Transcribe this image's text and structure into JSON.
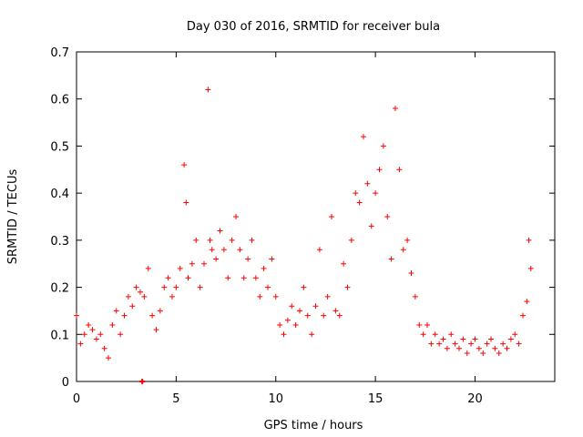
{
  "chart_data": {
    "type": "scatter",
    "title": "Day 030 of 2016, SRMTID for receiver bula",
    "xlabel": "GPS time / hours",
    "ylabel": "SRMTID / TECUs",
    "xlim": [
      0,
      24
    ],
    "ylim": [
      0,
      0.7
    ],
    "xticks": [
      0,
      5,
      10,
      15,
      20
    ],
    "yticks": [
      0,
      0.1,
      0.2,
      0.3,
      0.4,
      0.5,
      0.6,
      0.7
    ],
    "xtick_labels": [
      "0",
      "5",
      "10",
      "15",
      "20"
    ],
    "ytick_labels": [
      "0",
      "0.1",
      "0.2",
      "0.3",
      "0.4",
      "0.5",
      "0.6",
      "0.7"
    ],
    "grid": false,
    "marker": "+",
    "color": "#ff0000",
    "series": [
      {
        "name": "SRMTID",
        "x": [
          0.0,
          0.2,
          0.4,
          0.6,
          0.8,
          1.0,
          1.2,
          1.4,
          1.6,
          1.8,
          2.0,
          2.2,
          2.4,
          2.6,
          2.8,
          3.0,
          3.2,
          3.4,
          3.6,
          3.8,
          4.0,
          4.2,
          4.4,
          4.6,
          4.8,
          5.0,
          5.2,
          5.4,
          5.5,
          5.6,
          5.8,
          6.0,
          6.2,
          6.4,
          6.6,
          6.7,
          6.8,
          7.0,
          7.2,
          7.4,
          7.6,
          7.8,
          8.0,
          8.2,
          8.4,
          8.6,
          8.8,
          9.0,
          9.2,
          9.4,
          9.6,
          9.8,
          10.0,
          10.2,
          10.4,
          10.6,
          10.8,
          11.0,
          11.2,
          11.4,
          11.6,
          11.8,
          12.0,
          12.2,
          12.4,
          12.6,
          12.8,
          13.0,
          13.2,
          13.4,
          13.6,
          13.8,
          14.0,
          14.2,
          14.4,
          14.6,
          14.8,
          15.0,
          15.2,
          15.4,
          15.6,
          15.8,
          16.0,
          16.2,
          16.4,
          16.6,
          16.8,
          17.0,
          17.2,
          17.4,
          17.6,
          17.8,
          18.0,
          18.2,
          18.4,
          18.6,
          18.8,
          19.0,
          19.2,
          19.4,
          19.6,
          19.8,
          20.0,
          20.2,
          20.4,
          20.6,
          20.8,
          21.0,
          21.2,
          21.4,
          21.6,
          21.8,
          22.0,
          22.2,
          22.4,
          22.6,
          22.7,
          22.8
        ],
        "y": [
          0.14,
          0.08,
          0.1,
          0.12,
          0.11,
          0.09,
          0.1,
          0.07,
          0.05,
          0.12,
          0.15,
          0.1,
          0.14,
          0.18,
          0.16,
          0.2,
          0.19,
          0.18,
          0.24,
          0.14,
          0.11,
          0.15,
          0.2,
          0.22,
          0.18,
          0.2,
          0.24,
          0.46,
          0.38,
          0.22,
          0.25,
          0.3,
          0.2,
          0.25,
          0.62,
          0.3,
          0.28,
          0.26,
          0.32,
          0.28,
          0.22,
          0.3,
          0.35,
          0.28,
          0.22,
          0.26,
          0.3,
          0.22,
          0.18,
          0.24,
          0.2,
          0.26,
          0.18,
          0.12,
          0.1,
          0.13,
          0.16,
          0.12,
          0.15,
          0.2,
          0.14,
          0.1,
          0.16,
          0.28,
          0.14,
          0.18,
          0.35,
          0.15,
          0.14,
          0.25,
          0.2,
          0.3,
          0.4,
          0.38,
          0.52,
          0.42,
          0.33,
          0.4,
          0.45,
          0.5,
          0.35,
          0.26,
          0.58,
          0.45,
          0.28,
          0.3,
          0.23,
          0.18,
          0.12,
          0.1,
          0.12,
          0.08,
          0.1,
          0.08,
          0.09,
          0.07,
          0.1,
          0.08,
          0.07,
          0.09,
          0.06,
          0.08,
          0.09,
          0.07,
          0.06,
          0.08,
          0.09,
          0.07,
          0.06,
          0.08,
          0.07,
          0.09,
          0.1,
          0.08,
          0.14,
          0.17,
          0.3,
          0.24
        ],
        "low_marker": {
          "x": 3.3,
          "y": 0
        }
      }
    ]
  }
}
